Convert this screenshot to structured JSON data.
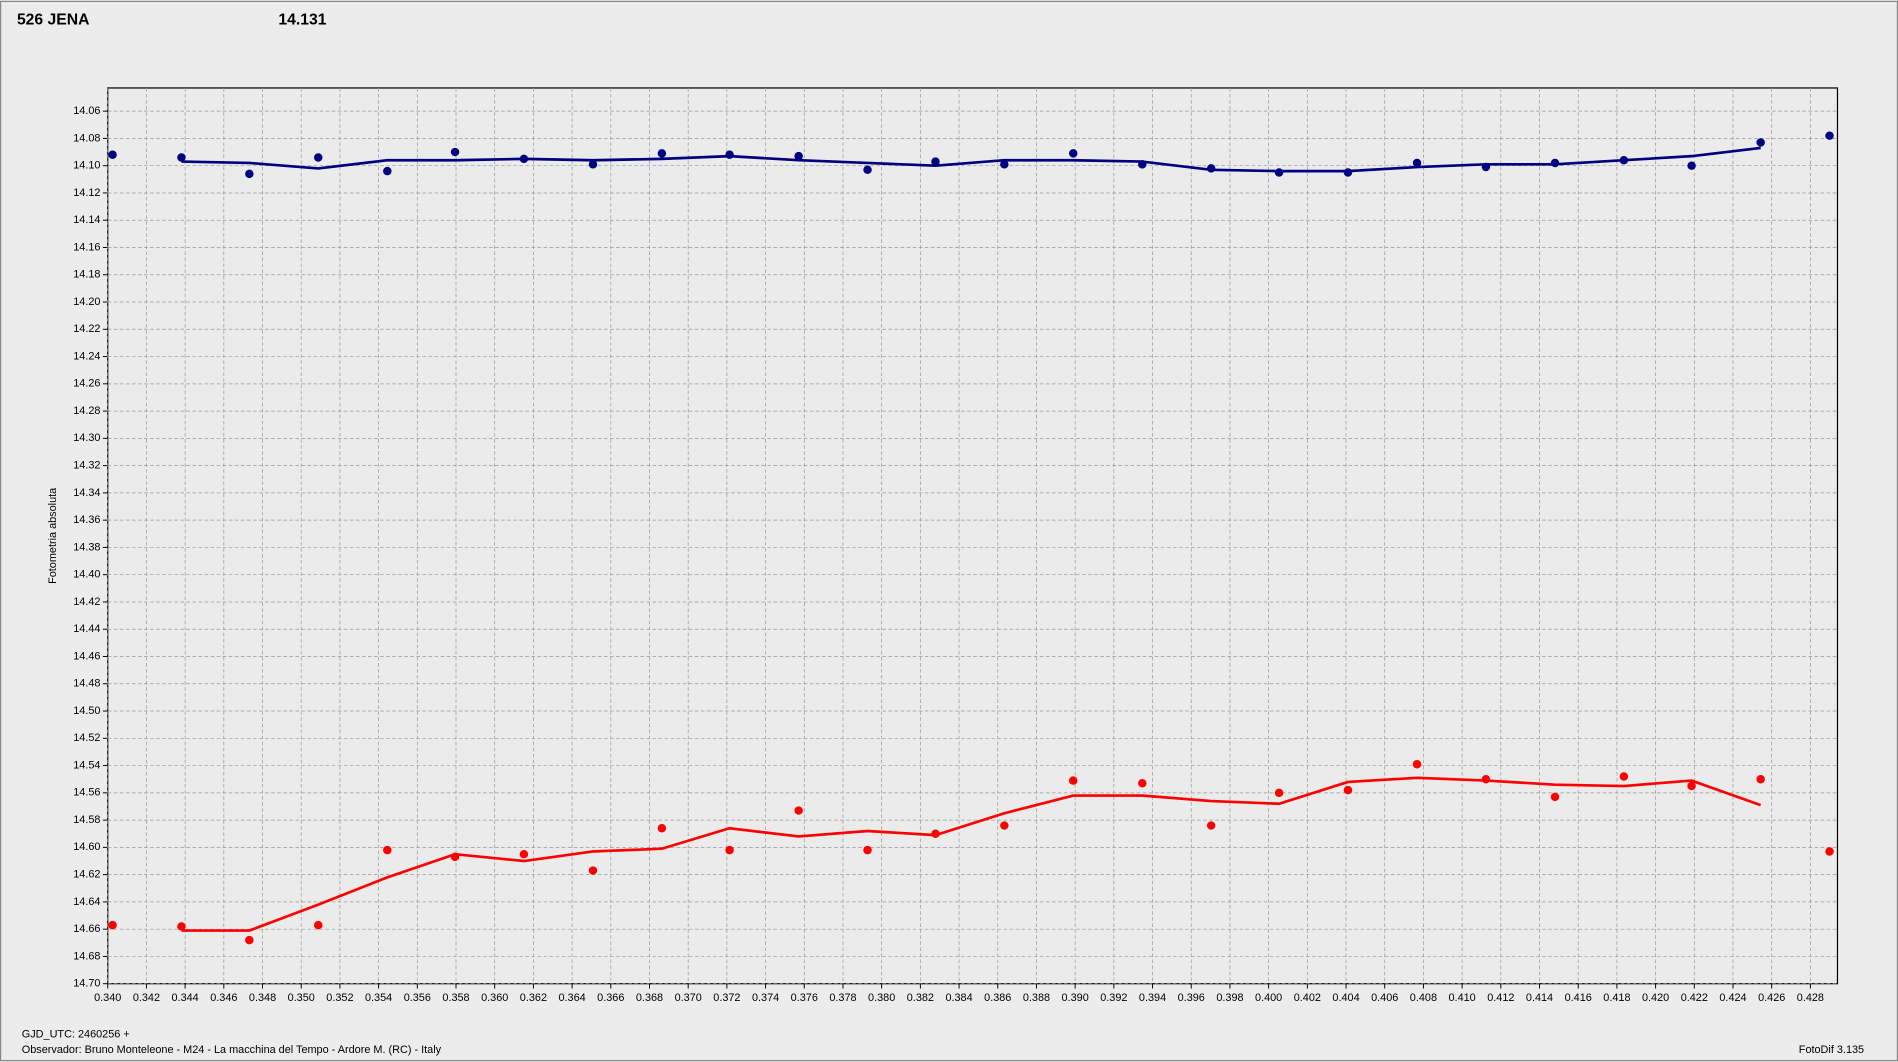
{
  "chart_data": {
    "type": "scatter",
    "title": "526 JENA",
    "subtitle": "14.131",
    "y_label": "Fotometria absoluta",
    "x_label": "GJD_UTC: 2460256 +",
    "footer": "Observador: Bruno Monteleone - M24 - La macchina del Tempo - Ardore M. (RC) - Italy",
    "software": "FotoDif 3.135",
    "title_color": "#ff0000",
    "subtitle_color": "#000080",
    "grid": true,
    "y_inverted": true,
    "xlim": [
      0.34,
      0.4294
    ],
    "ylim": [
      14.7,
      14.043
    ],
    "xticks": [
      {
        "value": 0.34,
        "label": "0.340"
      },
      0.342,
      0.344,
      0.346,
      0.348,
      {
        "value": 0.35,
        "label": "0.350"
      },
      0.352,
      0.354,
      0.356,
      0.358,
      {
        "value": 0.36,
        "label": "0.360"
      },
      0.362,
      0.364,
      0.366,
      0.368,
      {
        "value": 0.37,
        "label": "0.370"
      },
      0.372,
      0.374,
      0.376,
      0.378,
      {
        "value": 0.38,
        "label": "0.380"
      },
      0.382,
      0.384,
      0.386,
      0.388,
      {
        "value": 0.39,
        "label": "0.390"
      },
      0.392,
      0.394,
      0.396,
      0.398,
      {
        "value": 0.4,
        "label": "0.400"
      },
      0.402,
      0.404,
      0.406,
      0.408,
      {
        "value": 0.41,
        "label": "0.410"
      },
      0.412,
      0.414,
      0.416,
      0.418,
      {
        "value": 0.42,
        "label": "0.420"
      },
      0.422,
      0.424,
      0.426,
      0.428
    ],
    "yticks": [
      14.06,
      14.08,
      {
        "value": 14.1,
        "label": "14.10"
      },
      14.12,
      14.14,
      14.16,
      14.18,
      {
        "value": 14.2,
        "label": "14.20"
      },
      14.22,
      14.24,
      14.26,
      14.28,
      {
        "value": 14.3,
        "label": "14.30"
      },
      14.32,
      14.34,
      14.36,
      14.38,
      {
        "value": 14.4,
        "label": "14.40"
      },
      14.42,
      14.44,
      14.46,
      14.48,
      {
        "value": 14.5,
        "label": "14.50"
      },
      14.52,
      14.54,
      14.56,
      14.58,
      {
        "value": 14.6,
        "label": "14.60"
      },
      14.62,
      14.64,
      14.66,
      14.68,
      {
        "value": 14.7,
        "label": "14.70"
      }
    ],
    "x": [
      0.34025,
      0.34381,
      0.34732,
      0.35088,
      0.35445,
      0.35795,
      0.36151,
      0.36508,
      0.36864,
      0.37214,
      0.37571,
      0.37927,
      0.38278,
      0.38634,
      0.3899,
      0.39347,
      0.39703,
      0.40054,
      0.4041,
      0.40767,
      0.41123,
      0.4148,
      0.41836,
      0.42186,
      0.42543,
      0.42899
    ],
    "series": [
      {
        "color": "#000080",
        "values": [
          14.092,
          14.094,
          14.106,
          14.094,
          14.104,
          14.09,
          14.095,
          14.099,
          14.091,
          14.092,
          14.093,
          14.103,
          14.097,
          14.099,
          14.091,
          14.099,
          14.102,
          14.105,
          14.105,
          14.098,
          14.101,
          14.098,
          14.096,
          14.1,
          14.083,
          14.078
        ],
        "line_values": [
          null,
          14.097,
          14.098,
          14.102,
          14.096,
          14.096,
          14.095,
          14.096,
          14.095,
          14.093,
          14.096,
          14.098,
          14.1,
          14.096,
          14.096,
          14.097,
          14.103,
          14.104,
          14.104,
          14.101,
          14.099,
          14.099,
          14.096,
          14.093,
          14.087,
          null
        ]
      },
      {
        "color": "#ff0000",
        "values": [
          14.657,
          14.658,
          14.668,
          14.657,
          14.602,
          14.607,
          14.605,
          14.617,
          14.586,
          14.602,
          14.573,
          14.602,
          14.59,
          14.584,
          14.551,
          14.553,
          14.584,
          14.56,
          14.558,
          14.539,
          14.55,
          14.563,
          14.548,
          14.555,
          14.55,
          14.603
        ],
        "line_values": [
          null,
          14.661,
          14.661,
          14.642,
          14.622,
          14.605,
          14.61,
          14.603,
          14.601,
          14.586,
          14.592,
          14.588,
          14.591,
          14.575,
          14.562,
          14.562,
          14.566,
          14.568,
          14.552,
          14.549,
          14.551,
          14.554,
          14.555,
          14.551,
          14.569,
          null
        ]
      }
    ]
  }
}
